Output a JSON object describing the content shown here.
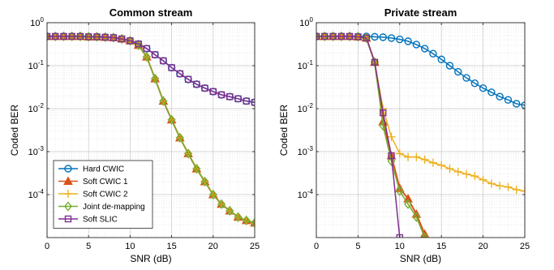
{
  "chart_data": [
    {
      "type": "line",
      "title": "Common stream",
      "xlabel": "SNR (dB)",
      "ylabel": "Coded BER",
      "xlim": [
        0,
        25
      ],
      "ylim": [
        1e-05,
        1
      ],
      "yscale": "log",
      "xticks": [
        0,
        5,
        10,
        15,
        20,
        25
      ],
      "ytick_exponents": [
        0,
        -1,
        -2,
        -3,
        -4
      ],
      "grid": true,
      "legend": {
        "placement": "bottom-left",
        "entries": [
          "Hard CWIC",
          "Soft CWIC 1",
          "Soft CWIC 2",
          "Joint de-mapping",
          "Soft SLIC"
        ]
      },
      "series": [
        {
          "name": "Hard CWIC",
          "color": "#0072BD",
          "marker": "circle",
          "x": [
            0,
            1,
            2,
            3,
            4,
            5,
            6,
            7,
            8,
            9,
            10,
            11,
            12,
            13,
            14,
            15,
            16,
            17,
            18,
            19,
            20,
            21,
            22,
            23,
            24,
            25
          ],
          "y": [
            0.48,
            0.48,
            0.48,
            0.48,
            0.48,
            0.47,
            0.47,
            0.46,
            0.45,
            0.42,
            0.38,
            0.32,
            0.25,
            0.18,
            0.13,
            0.09,
            0.065,
            0.048,
            0.037,
            0.03,
            0.025,
            0.021,
            0.019,
            0.017,
            0.015,
            0.014
          ]
        },
        {
          "name": "Soft CWIC 1",
          "color": "#D95319",
          "marker": "triangle",
          "x": [
            0,
            1,
            2,
            3,
            4,
            5,
            6,
            7,
            8,
            9,
            10,
            11,
            12,
            13,
            14,
            15,
            16,
            17,
            18,
            19,
            20,
            21,
            22,
            23,
            24,
            25
          ],
          "y": [
            0.48,
            0.48,
            0.48,
            0.48,
            0.48,
            0.47,
            0.47,
            0.46,
            0.45,
            0.42,
            0.38,
            0.3,
            0.16,
            0.05,
            0.015,
            0.0055,
            0.0021,
            0.0009,
            0.0004,
            0.0002,
            0.0001,
            6e-05,
            4.2e-05,
            3e-05,
            2.5e-05,
            2.2e-05
          ]
        },
        {
          "name": "Soft CWIC 2",
          "color": "#EDB120",
          "marker": "plus",
          "x": [
            0,
            1,
            2,
            3,
            4,
            5,
            6,
            7,
            8,
            9,
            10,
            11,
            12,
            13,
            14,
            15,
            16,
            17,
            18,
            19,
            20,
            21,
            22,
            23,
            24,
            25
          ],
          "y": [
            0.48,
            0.48,
            0.48,
            0.48,
            0.48,
            0.47,
            0.47,
            0.46,
            0.45,
            0.42,
            0.38,
            0.3,
            0.16,
            0.05,
            0.015,
            0.0055,
            0.0021,
            0.0009,
            0.0004,
            0.0002,
            0.0001,
            6e-05,
            4.2e-05,
            3e-05,
            2.5e-05,
            2.2e-05
          ]
        },
        {
          "name": "Joint de-mapping",
          "color": "#77AC30",
          "marker": "diamond",
          "x": [
            0,
            1,
            2,
            3,
            4,
            5,
            6,
            7,
            8,
            9,
            10,
            11,
            12,
            13,
            14,
            15,
            16,
            17,
            18,
            19,
            20,
            21,
            22,
            23,
            24,
            25
          ],
          "y": [
            0.48,
            0.48,
            0.48,
            0.48,
            0.48,
            0.47,
            0.47,
            0.46,
            0.45,
            0.42,
            0.38,
            0.3,
            0.16,
            0.05,
            0.015,
            0.0055,
            0.0021,
            0.0009,
            0.0004,
            0.0002,
            0.0001,
            6e-05,
            4.2e-05,
            3e-05,
            2.5e-05,
            2.2e-05
          ]
        },
        {
          "name": "Soft SLIC",
          "color": "#7E2F8E",
          "marker": "square",
          "x": [
            0,
            1,
            2,
            3,
            4,
            5,
            6,
            7,
            8,
            9,
            10,
            11,
            12,
            13,
            14,
            15,
            16,
            17,
            18,
            19,
            20,
            21,
            22,
            23,
            24,
            25
          ],
          "y": [
            0.48,
            0.48,
            0.48,
            0.48,
            0.48,
            0.47,
            0.47,
            0.46,
            0.45,
            0.42,
            0.38,
            0.32,
            0.25,
            0.18,
            0.13,
            0.09,
            0.065,
            0.048,
            0.037,
            0.03,
            0.025,
            0.021,
            0.019,
            0.017,
            0.015,
            0.014
          ]
        }
      ]
    },
    {
      "type": "line",
      "title": "Private stream",
      "xlabel": "SNR (dB)",
      "ylabel": "Coded BER",
      "xlim": [
        0,
        25
      ],
      "ylim": [
        1e-05,
        1
      ],
      "yscale": "log",
      "xticks": [
        0,
        5,
        10,
        15,
        20,
        25
      ],
      "ytick_exponents": [
        0,
        -1,
        -2,
        -3,
        -4
      ],
      "grid": true,
      "series": [
        {
          "name": "Hard CWIC",
          "color": "#0072BD",
          "marker": "circle",
          "x": [
            0,
            1,
            2,
            3,
            4,
            5,
            6,
            7,
            8,
            9,
            10,
            11,
            12,
            13,
            14,
            15,
            16,
            17,
            18,
            19,
            20,
            21,
            22,
            23,
            24,
            25
          ],
          "y": [
            0.48,
            0.48,
            0.48,
            0.48,
            0.48,
            0.48,
            0.48,
            0.47,
            0.46,
            0.44,
            0.41,
            0.37,
            0.31,
            0.25,
            0.19,
            0.14,
            0.1,
            0.072,
            0.052,
            0.039,
            0.03,
            0.024,
            0.019,
            0.016,
            0.013,
            0.012
          ]
        },
        {
          "name": "Soft CWIC 1",
          "color": "#D95319",
          "marker": "triangle",
          "x": [
            0,
            1,
            2,
            3,
            4,
            5,
            6,
            7,
            8,
            9,
            10,
            11,
            12,
            13
          ],
          "y": [
            0.48,
            0.48,
            0.48,
            0.48,
            0.48,
            0.47,
            0.44,
            0.12,
            0.005,
            0.0008,
            0.00014,
            8e-05,
            3.5e-05,
            1.2e-05
          ]
        },
        {
          "name": "Soft CWIC 2",
          "color": "#EDB120",
          "marker": "plus",
          "x": [
            0,
            1,
            2,
            3,
            4,
            5,
            6,
            7,
            8,
            9,
            10,
            11,
            12,
            13,
            14,
            15,
            16,
            17,
            18,
            19,
            20,
            21,
            22,
            23,
            24,
            25
          ],
          "y": [
            0.48,
            0.48,
            0.48,
            0.48,
            0.48,
            0.47,
            0.44,
            0.12,
            0.01,
            0.0022,
            0.0009,
            0.00075,
            0.00075,
            0.00065,
            0.00055,
            0.00048,
            0.0004,
            0.00034,
            0.0003,
            0.00027,
            0.00022,
            0.00018,
            0.00016,
            0.00015,
            0.00013,
            0.00012
          ]
        },
        {
          "name": "Joint de-mapping",
          "color": "#77AC30",
          "marker": "diamond",
          "x": [
            0,
            1,
            2,
            3,
            4,
            5,
            6,
            7,
            8,
            9,
            10,
            11,
            12,
            13
          ],
          "y": [
            0.48,
            0.48,
            0.48,
            0.48,
            0.48,
            0.47,
            0.44,
            0.12,
            0.004,
            0.0006,
            0.00012,
            6e-05,
            3e-05,
            1e-05
          ]
        },
        {
          "name": "Soft SLIC",
          "color": "#7E2F8E",
          "marker": "square",
          "x": [
            0,
            1,
            2,
            3,
            4,
            5,
            6,
            7,
            8,
            9,
            10
          ],
          "y": [
            0.48,
            0.48,
            0.48,
            0.48,
            0.48,
            0.47,
            0.44,
            0.12,
            0.008,
            0.0008,
            1e-05
          ]
        }
      ]
    }
  ]
}
